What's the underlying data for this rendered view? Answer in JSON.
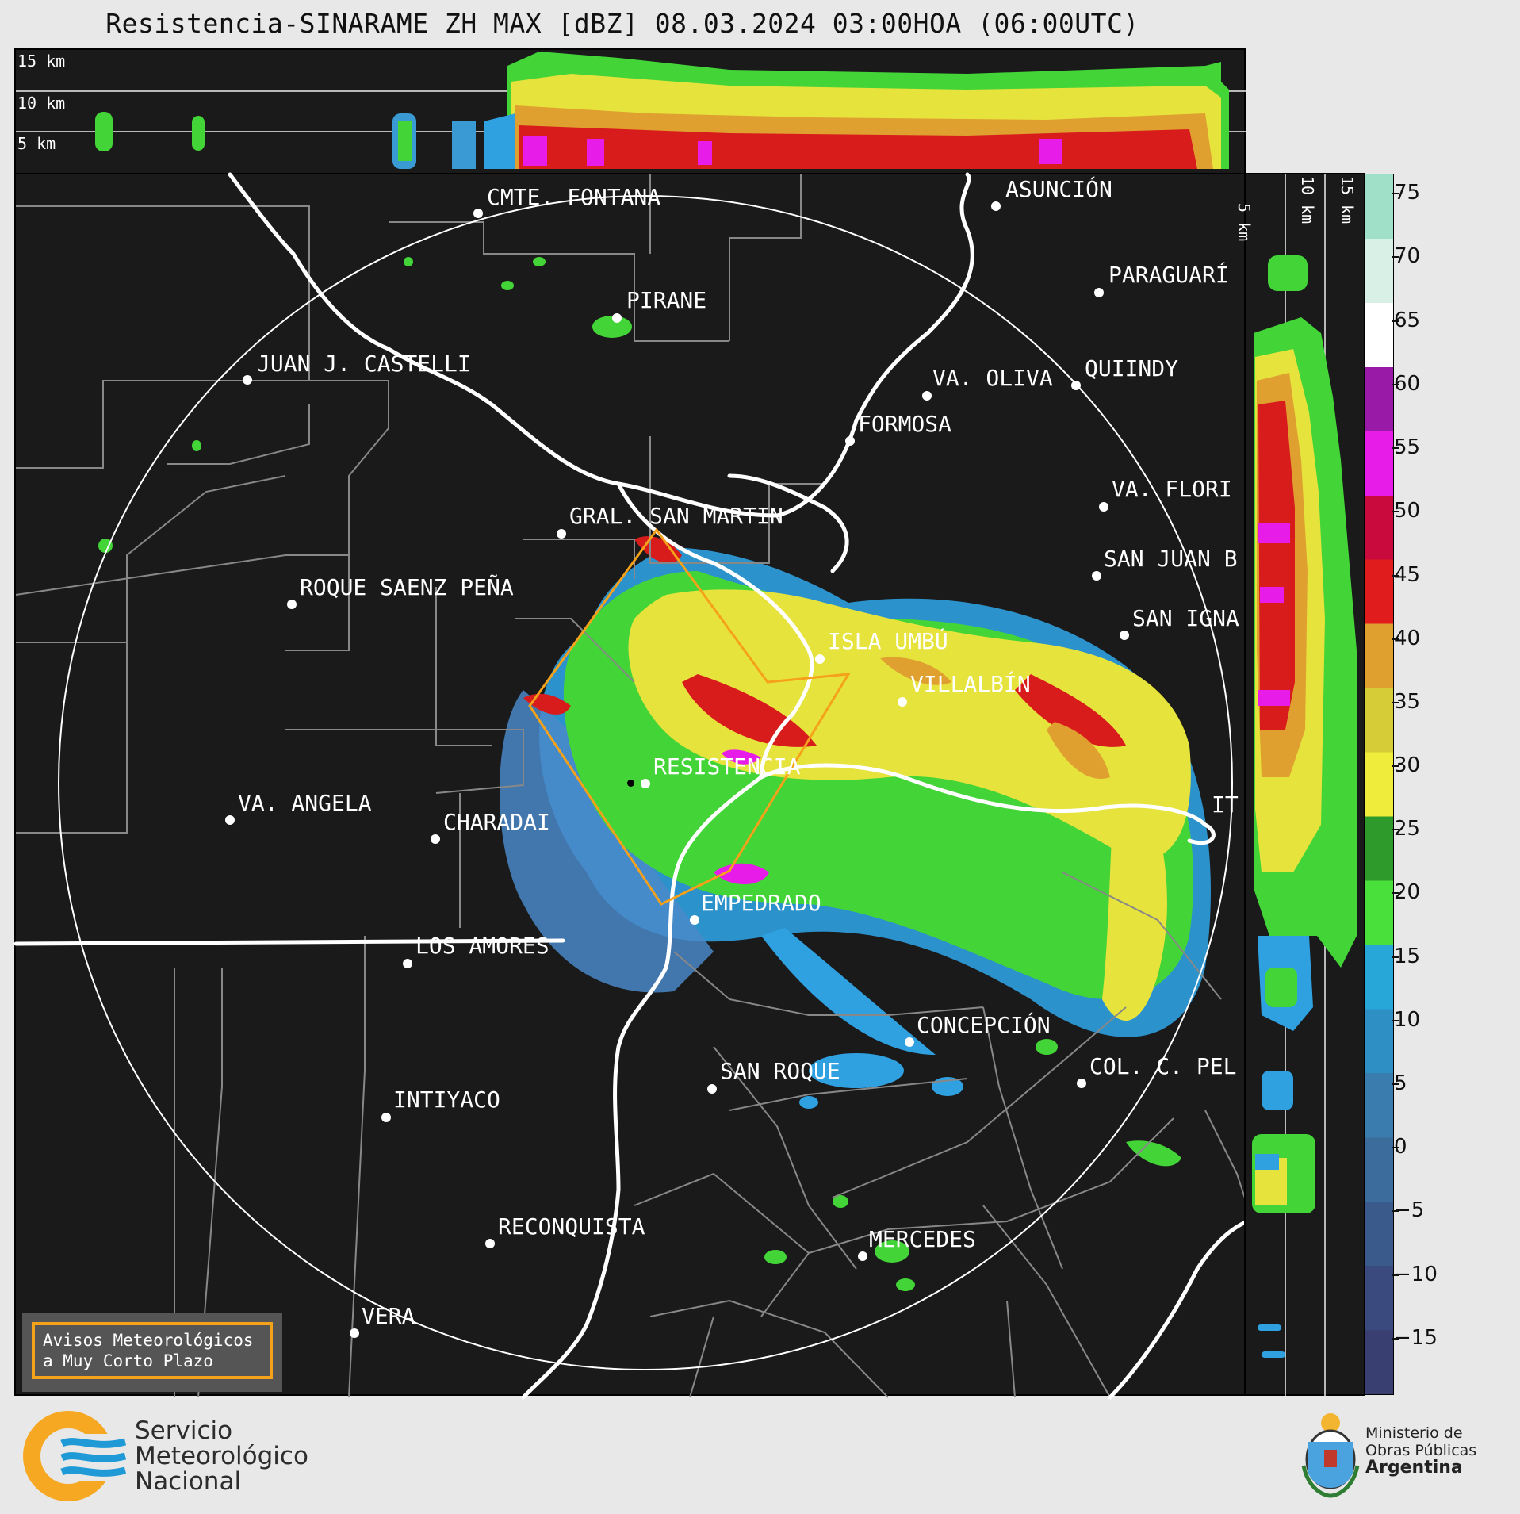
{
  "header": {
    "title": "Resistencia-SINARAME ZH MAX [dBZ] 08.03.2024 03:00HOA (06:00UTC)"
  },
  "top_panel": {
    "height_labels": [
      "15 km",
      "10 km",
      "5 km"
    ]
  },
  "side_panel": {
    "height_labels": [
      "5 km",
      "10 km",
      "15 km"
    ]
  },
  "map": {
    "cities": [
      {
        "name": "CMTE. FONTANA"
      },
      {
        "name": "ASUNCIÓN"
      },
      {
        "name": "PARAGUARÍ"
      },
      {
        "name": "PIRANE"
      },
      {
        "name": "JUAN J. CASTELLI"
      },
      {
        "name": "VA. OLIVA"
      },
      {
        "name": "QUIINDY"
      },
      {
        "name": "FORMOSA"
      },
      {
        "name": "VA. FLORI"
      },
      {
        "name": "GRAL. SAN MARTIN"
      },
      {
        "name": "SAN JUAN B"
      },
      {
        "name": "ROQUE SAENZ PEÑA"
      },
      {
        "name": "SAN IGNA"
      },
      {
        "name": "ISLA UMBÚ"
      },
      {
        "name": "VILLALBÍN"
      },
      {
        "name": "RESISTENCIA"
      },
      {
        "name": "VA. ANGELA"
      },
      {
        "name": "CHARADAI"
      },
      {
        "name": "IT"
      },
      {
        "name": "EMPEDRADO"
      },
      {
        "name": "LOS AMORES"
      },
      {
        "name": "CONCEPCIÓN"
      },
      {
        "name": "SAN ROQUE"
      },
      {
        "name": "COL. C. PEL"
      },
      {
        "name": "INTIYACO"
      },
      {
        "name": "RECONQUISTA"
      },
      {
        "name": "MERCEDES"
      },
      {
        "name": "VERA"
      }
    ]
  },
  "colorbar": {
    "ticks": [
      "75",
      "70",
      "65",
      "60",
      "55",
      "50",
      "45",
      "40",
      "35",
      "30",
      "25",
      "20",
      "15",
      "10",
      "5",
      "0",
      "−5",
      "−10",
      "−15"
    ],
    "colors": [
      "#3a3f72",
      "#3b4a7e",
      "#3b5a8c",
      "#3b6c9c",
      "#3b7cae",
      "#2e8fc4",
      "#27a6d8",
      "#49e03c",
      "#2f9a2c",
      "#f0ec3c",
      "#d6cc38",
      "#e0a030",
      "#e01c1c",
      "#c80a3c",
      "#e81ce8",
      "#9a1aa8",
      "#ffffff",
      "#d8f0e6",
      "#a0e0c8"
    ]
  },
  "notice": {
    "line1": "Avisos Meteorológicos",
    "line2": "a Muy Corto Plazo"
  },
  "logo_smn": {
    "line1": "Servicio",
    "line2": "Meteorológico",
    "line3": "Nacional"
  },
  "logo_ministry": {
    "line1": "Ministerio de",
    "line2": "Obras Públicas",
    "line3": "Argentina"
  }
}
